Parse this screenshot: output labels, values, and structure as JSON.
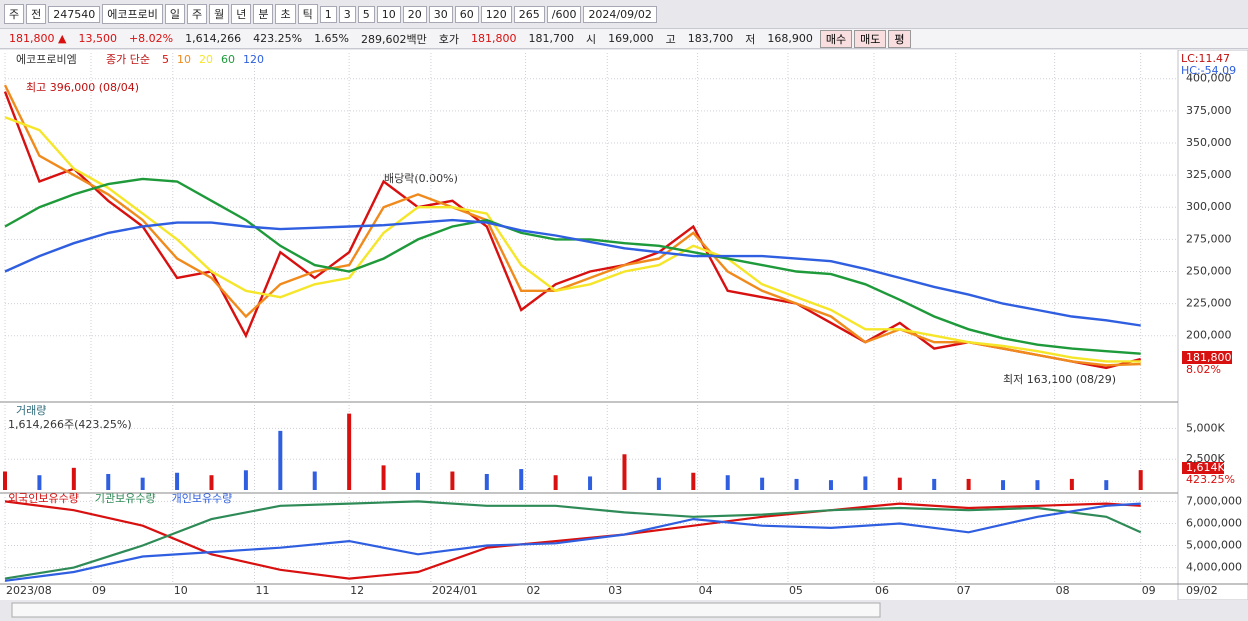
{
  "toolbar": {
    "items": [
      "주",
      "전",
      "247540",
      "에코프로비",
      "일",
      "주",
      "월",
      "년",
      "분",
      "초",
      "틱",
      "1",
      "3",
      "5",
      "10",
      "20",
      "30",
      "60",
      "120",
      "265",
      "/600",
      "2024/09/02"
    ]
  },
  "info": {
    "items": [
      "181,800 ▲",
      "13,500",
      "+8.02%",
      "1,614,266",
      "423.25%",
      "1.65%",
      "289,602백만",
      "호가",
      "181,800",
      "181,700",
      "시",
      "169,000",
      "고",
      "183,700",
      "저",
      "168,900"
    ],
    "buttons": [
      "매수",
      "매도",
      "평"
    ]
  },
  "chart_data": [
    {
      "type": "line",
      "title": "에코프로비엠",
      "legend_title": "종가 단순",
      "xlim": [
        0,
        265
      ],
      "x": [
        0,
        8,
        16,
        24,
        32,
        40,
        48,
        56,
        64,
        72,
        80,
        88,
        96,
        104,
        112,
        120,
        128,
        136,
        144,
        152,
        160,
        168,
        176,
        184,
        192,
        200,
        208,
        216,
        224,
        232,
        240,
        248,
        256,
        264
      ],
      "ylim": [
        150000,
        420000
      ],
      "yticks": [
        {
          "value": 200000,
          "label": "200,000"
        },
        {
          "value": 225000,
          "label": "225,000"
        },
        {
          "value": 250000,
          "label": "250,000"
        },
        {
          "value": 275000,
          "label": "275,000"
        },
        {
          "value": 300000,
          "label": "300,000"
        },
        {
          "value": 325000,
          "label": "325,000"
        },
        {
          "value": 350000,
          "label": "350,000"
        },
        {
          "value": 375000,
          "label": "375,000"
        },
        {
          "value": 400000,
          "label": "400,000"
        }
      ],
      "grid": true,
      "series": [
        {
          "name": "5",
          "color": "#d81010",
          "values": [
            390000,
            320000,
            330000,
            305000,
            285000,
            245000,
            250000,
            200000,
            265000,
            245000,
            265000,
            320000,
            300000,
            305000,
            285000,
            220000,
            240000,
            250000,
            255000,
            265000,
            285000,
            235000,
            230000,
            225000,
            210000,
            195000,
            210000,
            190000,
            195000,
            190000,
            185000,
            180000,
            175000,
            181800
          ]
        },
        {
          "name": "10",
          "color": "#f08a1c",
          "values": [
            395000,
            340000,
            325000,
            310000,
            290000,
            260000,
            245000,
            215000,
            240000,
            250000,
            255000,
            300000,
            310000,
            300000,
            290000,
            235000,
            235000,
            245000,
            255000,
            260000,
            280000,
            250000,
            235000,
            225000,
            215000,
            195000,
            205000,
            195000,
            195000,
            190000,
            185000,
            180000,
            177000,
            178000
          ]
        },
        {
          "name": "20",
          "color": "#f5e62a",
          "values": [
            370000,
            360000,
            330000,
            315000,
            295000,
            275000,
            250000,
            235000,
            230000,
            240000,
            245000,
            280000,
            300000,
            300000,
            295000,
            255000,
            235000,
            240000,
            250000,
            255000,
            270000,
            260000,
            240000,
            230000,
            220000,
            205000,
            205000,
            200000,
            195000,
            192000,
            188000,
            183000,
            180000,
            180000
          ]
        },
        {
          "name": "60",
          "color": "#1e9a3a",
          "values": [
            285000,
            300000,
            310000,
            318000,
            322000,
            320000,
            305000,
            290000,
            270000,
            255000,
            250000,
            260000,
            275000,
            285000,
            290000,
            280000,
            275000,
            275000,
            272000,
            270000,
            265000,
            260000,
            255000,
            250000,
            248000,
            240000,
            228000,
            215000,
            205000,
            198000,
            193000,
            190000,
            188000,
            186000
          ]
        },
        {
          "name": "120",
          "color": "#2f5fe0",
          "values": [
            250000,
            262000,
            272000,
            280000,
            285000,
            288000,
            288000,
            285000,
            283000,
            284000,
            285000,
            286000,
            288000,
            290000,
            288000,
            282000,
            278000,
            273000,
            268000,
            265000,
            262000,
            262000,
            262000,
            260000,
            258000,
            252000,
            245000,
            238000,
            232000,
            225000,
            220000,
            215000,
            212000,
            208000
          ]
        }
      ],
      "annotations": [
        "최고 396,000 (08/04)",
        "배당락(0.00%)",
        "최저 163,100 (08/29)",
        "LC:11.47",
        "HC:-54.09",
        "181,800",
        "8.02%"
      ]
    },
    {
      "type": "bar",
      "title": "거래량",
      "subtitle": "1,614,266주(423.25%)",
      "xlim": [
        0,
        265
      ],
      "x": [
        0,
        8,
        16,
        24,
        32,
        40,
        48,
        56,
        64,
        72,
        80,
        88,
        96,
        104,
        112,
        120,
        128,
        136,
        144,
        152,
        160,
        168,
        176,
        184,
        192,
        200,
        208,
        216,
        224,
        232,
        240,
        248,
        256,
        264
      ],
      "ylim": [
        0,
        6900000
      ],
      "yticks": [
        {
          "value": 2500000,
          "label": "2,500K"
        },
        {
          "value": 5000000,
          "label": "5,000K"
        }
      ],
      "values": [
        1500000,
        1200000,
        1800000,
        1300000,
        1000000,
        1400000,
        1200000,
        1600000,
        4800000,
        1500000,
        6200000,
        2000000,
        1400000,
        1500000,
        1300000,
        1700000,
        1200000,
        1100000,
        2900000,
        1000000,
        1400000,
        1200000,
        1000000,
        900000,
        800000,
        1100000,
        1000000,
        900000,
        900000,
        800000,
        800000,
        900000,
        800000,
        1614266
      ],
      "colors": [
        "#d81010",
        "#2f5fe0",
        "#d81010",
        "#2f5fe0",
        "#2f5fe0",
        "#2f5fe0",
        "#d81010",
        "#2f5fe0",
        "#2f5fe0",
        "#2f5fe0",
        "#d81010",
        "#d81010",
        "#2f5fe0",
        "#d81010",
        "#2f5fe0",
        "#2f5fe0",
        "#d81010",
        "#2f5fe0",
        "#d81010",
        "#2f5fe0",
        "#d81010",
        "#2f5fe0",
        "#2f5fe0",
        "#2f5fe0",
        "#2f5fe0",
        "#2f5fe0",
        "#d81010",
        "#2f5fe0",
        "#d81010",
        "#2f5fe0",
        "#2f5fe0",
        "#d81010",
        "#2f5fe0",
        "#d81010"
      ],
      "annotations": [
        "1,614K",
        "423.25%"
      ]
    },
    {
      "type": "line",
      "xlim": [
        0,
        265
      ],
      "x": [
        0,
        16,
        32,
        48,
        64,
        80,
        96,
        112,
        128,
        144,
        160,
        176,
        192,
        208,
        224,
        240,
        256,
        264
      ],
      "ylim": [
        3300000,
        7200000
      ],
      "yticks": [
        {
          "value": 4000000,
          "label": "4,000,000"
        },
        {
          "value": 5000000,
          "label": "5,000,000"
        },
        {
          "value": 6000000,
          "label": "6,000,000"
        },
        {
          "value": 7000000,
          "label": "7,000,000"
        }
      ],
      "xticks": [
        {
          "value": 0,
          "label": "2023/08"
        },
        {
          "value": 20,
          "label": "09"
        },
        {
          "value": 39,
          "label": "10"
        },
        {
          "value": 58,
          "label": "11"
        },
        {
          "value": 80,
          "label": "12"
        },
        {
          "value": 99,
          "label": "2024/01"
        },
        {
          "value": 121,
          "label": "02"
        },
        {
          "value": 140,
          "label": "03"
        },
        {
          "value": 161,
          "label": "04"
        },
        {
          "value": 182,
          "label": "05"
        },
        {
          "value": 202,
          "label": "06"
        },
        {
          "value": 221,
          "label": "07"
        },
        {
          "value": 244,
          "label": "08"
        },
        {
          "value": 264,
          "label": "09"
        }
      ],
      "series": [
        {
          "name": "외국인보유수량",
          "color": "#d81010",
          "values": [
            7000000,
            6600000,
            5900000,
            4600000,
            3900000,
            3500000,
            3800000,
            4900000,
            5200000,
            5500000,
            5900000,
            6300000,
            6600000,
            6900000,
            6700000,
            6800000,
            6900000,
            6800000
          ]
        },
        {
          "name": "기관보유수량",
          "color": "#2e8b57",
          "values": [
            3500000,
            4000000,
            5000000,
            6200000,
            6800000,
            6900000,
            7000000,
            6800000,
            6800000,
            6500000,
            6300000,
            6400000,
            6600000,
            6700000,
            6600000,
            6700000,
            6300000,
            5600000
          ]
        },
        {
          "name": "개인보유수량",
          "color": "#2f5fe0",
          "values": [
            3400000,
            3800000,
            4500000,
            4700000,
            4900000,
            5200000,
            4600000,
            5000000,
            5100000,
            5500000,
            6200000,
            5900000,
            5800000,
            6000000,
            5600000,
            6300000,
            6800000,
            6900000
          ]
        }
      ],
      "annotations": [
        "09/02"
      ]
    }
  ]
}
